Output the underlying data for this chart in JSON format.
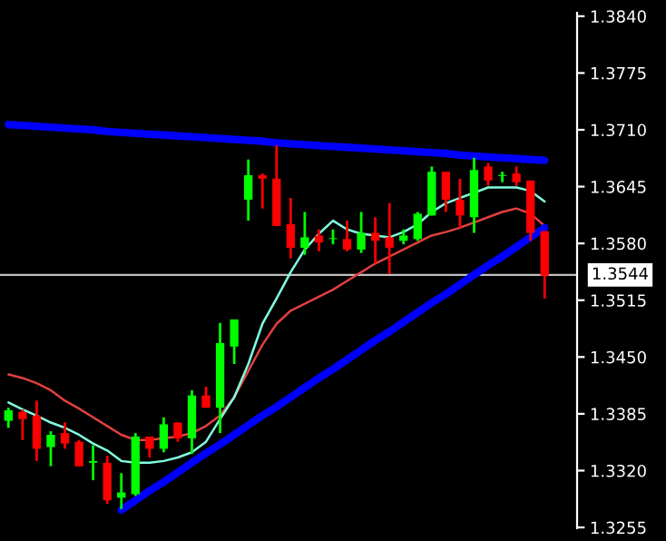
{
  "chart_data": {
    "type": "candlestick",
    "categories": [
      null,
      null,
      null,
      null,
      null,
      null,
      null,
      null,
      null,
      null,
      null,
      null,
      null,
      null,
      null,
      null,
      null,
      null,
      null,
      null,
      null,
      null,
      null,
      null,
      null,
      null,
      null,
      null,
      null,
      null,
      null,
      null,
      null,
      null,
      null,
      null,
      null,
      null,
      null
    ],
    "ohlc": [
      [
        1.3377,
        1.3392,
        1.3369,
        1.3389
      ],
      [
        1.3387,
        1.339,
        1.3355,
        1.3379
      ],
      [
        1.3383,
        1.34,
        1.3331,
        1.3345
      ],
      [
        1.3347,
        1.3365,
        1.3325,
        1.3361
      ],
      [
        1.3363,
        1.3375,
        1.3345,
        1.3351
      ],
      [
        1.3353,
        1.3355,
        1.3325,
        1.3325
      ],
      [
        1.3329,
        1.3349,
        1.3309,
        1.3331
      ],
      [
        1.3329,
        1.3337,
        1.3282,
        1.3286
      ],
      [
        1.3289,
        1.3317,
        1.3276,
        1.3295
      ],
      [
        1.3293,
        1.3363,
        1.3291,
        1.3359
      ],
      [
        1.3359,
        1.3359,
        1.3335,
        1.3345
      ],
      [
        1.3345,
        1.3381,
        1.3341,
        1.3373
      ],
      [
        1.3375,
        1.3375,
        1.3353,
        1.3357
      ],
      [
        1.3357,
        1.3412,
        1.3339,
        1.3406
      ],
      [
        1.3406,
        1.3416,
        1.3392,
        1.3392
      ],
      [
        1.3392,
        1.3489,
        1.3363,
        1.3466
      ],
      [
        1.3462,
        1.3493,
        1.3442,
        1.3493
      ],
      [
        1.363,
        1.3676,
        1.3606,
        1.3658
      ],
      [
        1.3658,
        1.366,
        1.362,
        1.3654
      ],
      [
        1.3654,
        1.3692,
        1.36,
        1.36
      ],
      [
        1.3602,
        1.3632,
        1.3563,
        1.3575
      ],
      [
        1.3575,
        1.3616,
        1.3567,
        1.3587
      ],
      [
        1.3589,
        1.3596,
        1.3571,
        1.3581
      ],
      [
        1.3585,
        1.3596,
        1.3579,
        1.3586
      ],
      [
        1.3585,
        1.3606,
        1.3571,
        1.3573
      ],
      [
        1.3573,
        1.3616,
        1.3569,
        1.3592
      ],
      [
        1.3592,
        1.361,
        1.3557,
        1.3583
      ],
      [
        1.3587,
        1.3626,
        1.3545,
        1.3575
      ],
      [
        1.3583,
        1.3596,
        1.3579,
        1.3589
      ],
      [
        1.3585,
        1.3616,
        1.3583,
        1.3614
      ],
      [
        1.3612,
        1.3668,
        1.3612,
        1.3662
      ],
      [
        1.3662,
        1.3662,
        1.3616,
        1.363
      ],
      [
        1.363,
        1.3654,
        1.3598,
        1.3612
      ],
      [
        1.361,
        1.3678,
        1.3592,
        1.3664
      ],
      [
        1.3668,
        1.3672,
        1.3646,
        1.3652
      ],
      [
        1.3657,
        1.3662,
        1.365,
        1.3658
      ],
      [
        1.366,
        1.3668,
        1.3646,
        1.365
      ],
      [
        1.3652,
        1.3652,
        1.3583,
        1.3592
      ],
      [
        1.3594,
        1.3594,
        1.3517,
        1.3543
      ]
    ],
    "colors": [
      "#00ff00",
      "#ff0000",
      "#ff0000",
      "#00ff00",
      "#ff0000",
      "#ff0000",
      "#00ff00",
      "#ff0000",
      "#00ff00",
      "#00ff00",
      "#ff0000",
      "#00ff00",
      "#ff0000",
      "#00ff00",
      "#ff0000",
      "#00ff00",
      "#00ff00",
      "#00ff00",
      "#ff0000",
      "#ff0000",
      "#ff0000",
      "#00ff00",
      "#ff0000",
      "#00ff00",
      "#ff0000",
      "#00ff00",
      "#ff0000",
      "#ff0000",
      "#00ff00",
      "#00ff00",
      "#00ff00",
      "#ff0000",
      "#ff0000",
      "#00ff00",
      "#ff0000",
      "#00ff00",
      "#ff0000",
      "#ff0000",
      "#ff0000"
    ],
    "series": [
      {
        "type": "line",
        "color": "#e04040",
        "values": [
          1.343,
          1.3426,
          1.342,
          1.3412,
          1.34,
          1.3391,
          1.3381,
          1.3371,
          1.3361,
          1.3355,
          1.3355,
          1.3357,
          1.3359,
          1.3363,
          1.3371,
          1.3383,
          1.3404,
          1.3434,
          1.3464,
          1.3488,
          1.3503,
          1.3511,
          1.3519,
          1.3527,
          1.3537,
          1.3547,
          1.3557,
          1.3565,
          1.3573,
          1.3581,
          1.3589,
          1.3593,
          1.3598,
          1.3604,
          1.361,
          1.3616,
          1.362,
          1.3614,
          1.36
        ]
      },
      {
        "type": "line",
        "color": "#80ffe0",
        "values": [
          1.3398,
          1.339,
          1.3383,
          1.3375,
          1.3369,
          1.3361,
          1.3351,
          1.3343,
          1.3331,
          1.3329,
          1.3329,
          1.3331,
          1.3335,
          1.3341,
          1.3353,
          1.3379,
          1.3404,
          1.3442,
          1.3488,
          1.3517,
          1.3547,
          1.3573,
          1.3591,
          1.3606,
          1.3596,
          1.3591,
          1.3589,
          1.3587,
          1.3593,
          1.3602,
          1.3616,
          1.3626,
          1.3632,
          1.3638,
          1.3644,
          1.3644,
          1.3644,
          1.364,
          1.3628
        ]
      },
      {
        "type": "line",
        "color": "#0000ff",
        "values": [
          1.3716,
          1.3715,
          1.3714,
          1.3713,
          1.3712,
          1.3711,
          1.371,
          1.3708,
          1.3707,
          1.3706,
          1.3705,
          1.3704,
          1.3703,
          1.3702,
          1.3701,
          1.37,
          1.3699,
          1.3698,
          1.3697,
          1.3695,
          1.3694,
          1.3693,
          1.3692,
          1.3691,
          1.369,
          1.3689,
          1.3688,
          1.3687,
          1.3686,
          1.3685,
          1.3684,
          1.3683,
          1.3681,
          1.368,
          1.3679,
          1.3678,
          1.3677,
          1.3676,
          1.3675
        ]
      },
      {
        "type": "line",
        "color": "#0000ff",
        "values": [
          null,
          null,
          null,
          null,
          null,
          null,
          null,
          null,
          1.3275,
          1.3286,
          1.3297,
          1.3307,
          1.3318,
          1.3329,
          1.334,
          1.335,
          1.3361,
          1.3372,
          1.3383,
          1.3393,
          1.3404,
          1.3415,
          1.3426,
          1.3436,
          1.3447,
          1.3458,
          1.3469,
          1.3479,
          1.349,
          1.3501,
          1.3512,
          1.3522,
          1.3533,
          1.3544,
          1.3555,
          1.3565,
          1.3576,
          1.3587,
          1.3598
        ]
      }
    ],
    "ref_lines": [
      {
        "axis": "y",
        "value": 1.3544,
        "label": "1.3544",
        "color": "#c0c0c0"
      }
    ],
    "ylim": [
      1.3254,
      1.3844
    ],
    "yticks": [
      {
        "value": 1.384,
        "label": "1.3840"
      },
      1.3775,
      {
        "value": 1.371,
        "label": "1.3710"
      },
      1.3645,
      {
        "value": 1.358,
        "label": "1.3580"
      },
      1.3515,
      {
        "value": 1.345,
        "label": "1.3450"
      },
      1.3385,
      {
        "value": 1.332,
        "label": "1.3320"
      },
      1.3255
    ],
    "tick_labels": "y"
  }
}
